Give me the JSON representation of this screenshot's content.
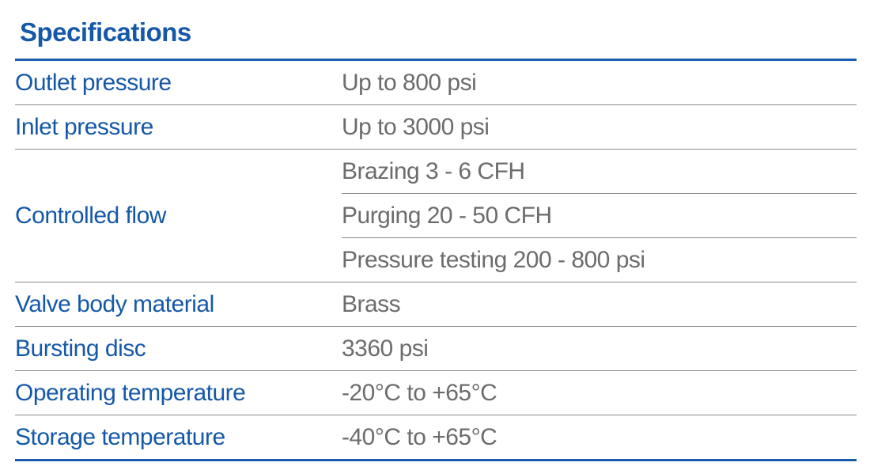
{
  "title": "Specifications",
  "colors": {
    "heading_blue": "#1558a8",
    "rule_blue": "#1a5aac",
    "value_gray": "#6b6c6e",
    "rule_gray": "#8a8b8e"
  },
  "table": {
    "rows": [
      {
        "label": "Outlet pressure",
        "values": [
          "Up to 800 psi"
        ]
      },
      {
        "label": "Inlet pressure",
        "values": [
          "Up to 3000 psi"
        ]
      },
      {
        "label": "Controlled flow",
        "values": [
          "Brazing 3 - 6 CFH",
          "Purging 20 - 50 CFH",
          "Pressure testing 200 - 800 psi"
        ]
      },
      {
        "label": "Valve body material",
        "values": [
          "Brass"
        ]
      },
      {
        "label": "Bursting disc",
        "values": [
          "3360 psi"
        ]
      },
      {
        "label": "Operating temperature",
        "values": [
          "-20°C to +65°C"
        ]
      },
      {
        "label": "Storage temperature",
        "values": [
          "-40°C to +65°C"
        ]
      }
    ]
  }
}
